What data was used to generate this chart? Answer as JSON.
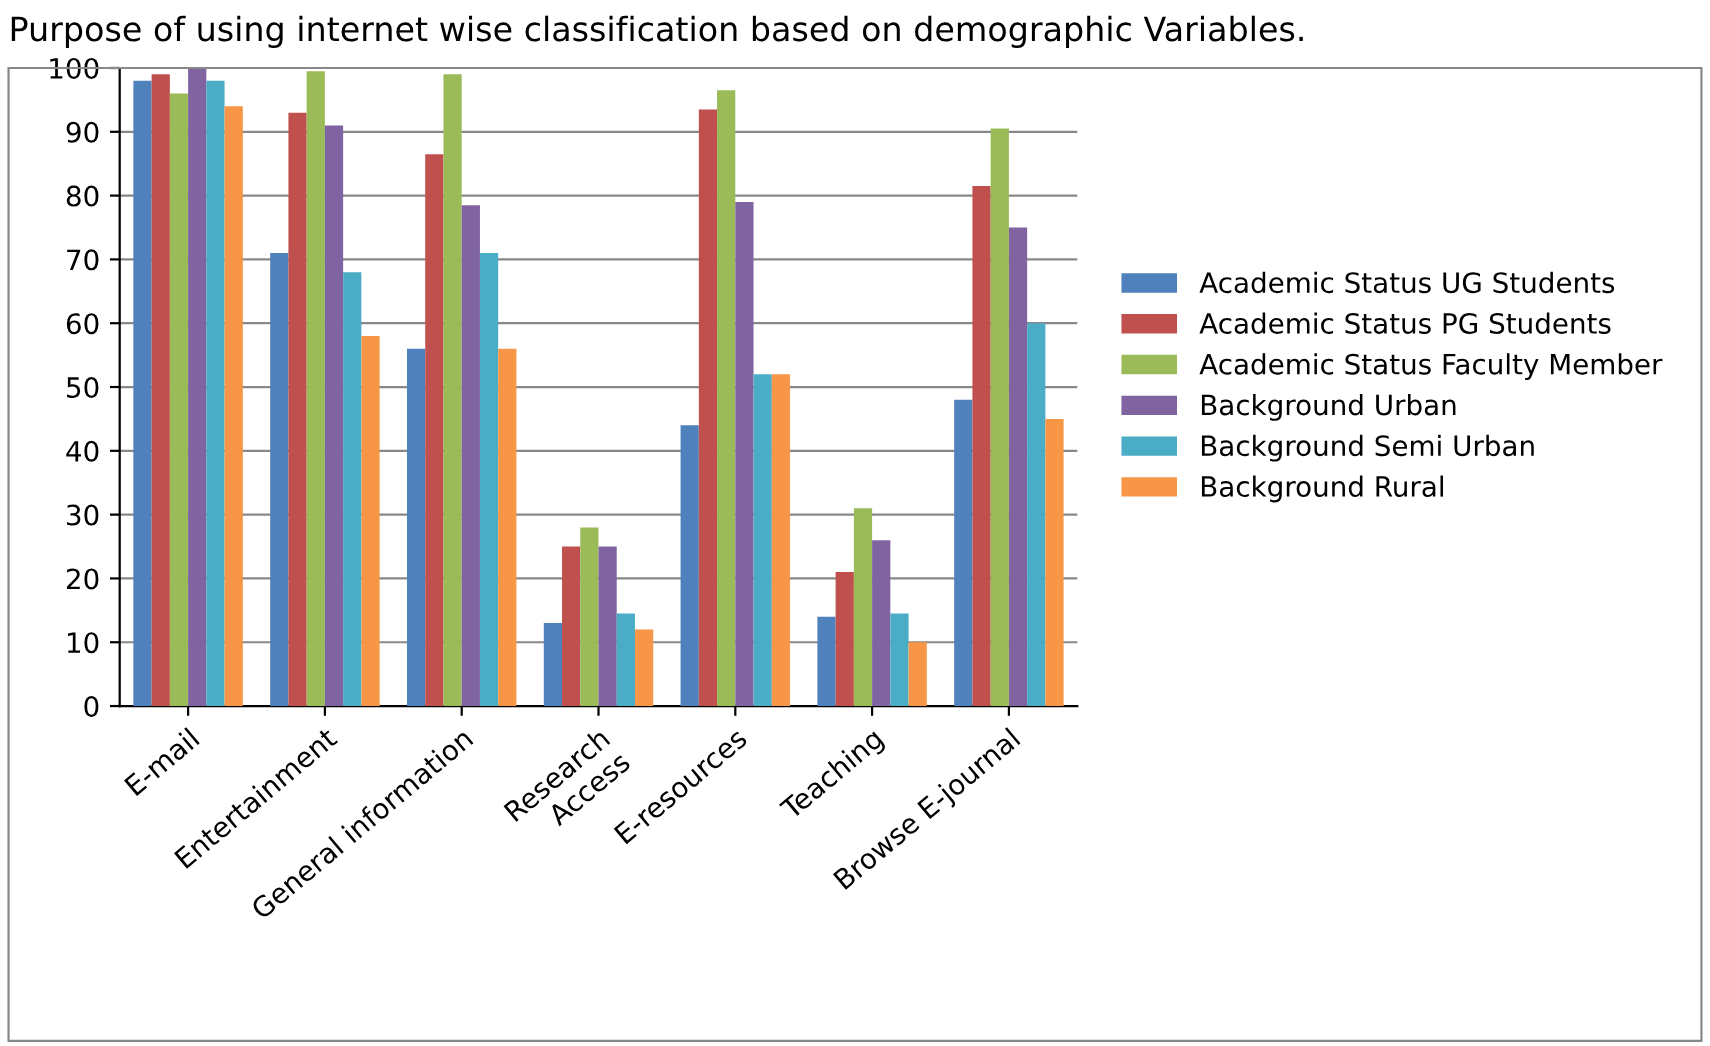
{
  "chart_data": {
    "type": "bar",
    "title": "Purpose of using internet wise classification based on demographic Variables.",
    "categories": [
      "E-mail",
      "Entertainment",
      "General information",
      "Research\nAccess",
      "E-resources",
      "Teaching",
      "Browse E-journal"
    ],
    "series": [
      {
        "name": "Academic Status UG Students",
        "color": "#4f81bd",
        "values": [
          98,
          71,
          56,
          13,
          44,
          14,
          48
        ]
      },
      {
        "name": "Academic Status PG Students",
        "color": "#c0504d",
        "values": [
          99,
          93,
          86.5,
          25,
          93.5,
          21,
          81.5
        ]
      },
      {
        "name": "Academic Status Faculty Member",
        "color": "#9bbb59",
        "values": [
          96,
          99.5,
          99,
          28,
          96.5,
          31,
          90.5
        ]
      },
      {
        "name": "Background Urban",
        "color": "#8064a2",
        "values": [
          100,
          91,
          78.5,
          25,
          79,
          26,
          75
        ]
      },
      {
        "name": "Background Semi Urban",
        "color": "#4bacc6",
        "values": [
          98,
          68,
          71,
          14.5,
          52,
          14.5,
          60
        ]
      },
      {
        "name": "Background Rural",
        "color": "#f79646",
        "values": [
          94,
          58,
          56,
          12,
          52,
          10,
          45
        ]
      }
    ],
    "ylim": [
      0,
      100
    ],
    "yticks": [
      0,
      10,
      20,
      30,
      40,
      50,
      60,
      70,
      80,
      90,
      100
    ],
    "grid": "y",
    "legend": "right"
  }
}
